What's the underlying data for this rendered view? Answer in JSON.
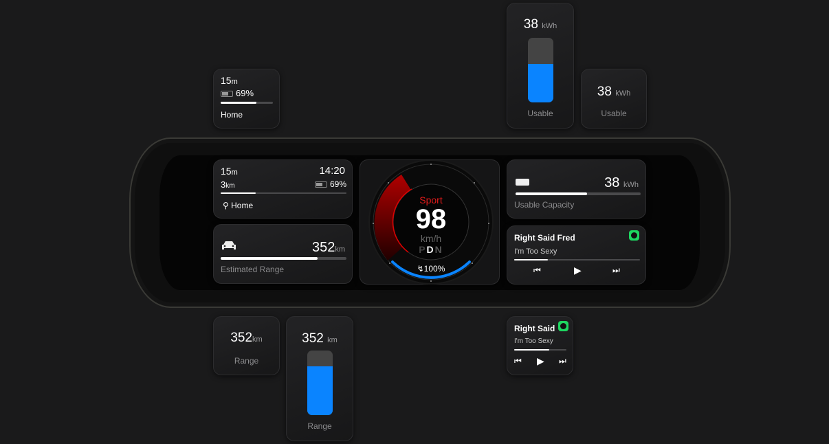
{
  "trip": {
    "duration": "15",
    "duration_unit": "m",
    "distance": "3",
    "distance_unit": "km",
    "time": "14:20",
    "battery": "69%",
    "destination": "Home",
    "progress": 0.28
  },
  "trip_small": {
    "duration": "15",
    "duration_unit": "m",
    "battery": "69%",
    "destination": "Home",
    "progress": 0.68
  },
  "range": {
    "value": "352",
    "unit": "km",
    "label": "Estimated Range",
    "short_label": "Range",
    "fraction": 0.77,
    "tall_fraction": 0.76
  },
  "capacity": {
    "value": "38",
    "unit": "kWh",
    "label": "Usable Capacity",
    "short_label": "Usable",
    "fraction": 0.57,
    "tall_fraction": 0.6
  },
  "speedometer": {
    "mode": "Sport",
    "speed": "98",
    "unit": "km/h",
    "gears": [
      "P",
      "D",
      "N"
    ],
    "selected_gear": "D",
    "charge": "100%"
  },
  "music": {
    "artist": "Right Said Fred",
    "artist_short": "Right Said",
    "track": "I'm Too Sexy",
    "progress": 0.27,
    "small_progress": 0.67,
    "source_icon": "spotify-icon"
  },
  "colors": {
    "accent": "#0a84ff",
    "sport": "#e31b1b",
    "spotify": "#1ed760"
  }
}
